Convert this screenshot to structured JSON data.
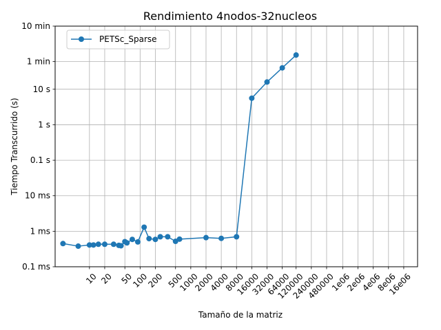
{
  "chart_data": {
    "type": "line",
    "title": "Rendimiento 4nodos-32nucleos",
    "xlabel": "Tamaño de la matriz",
    "ylabel": "Tiempo Transcurrido (s)",
    "xscale": "log",
    "yscale": "log",
    "xlim": [
      2.1,
      30000000
    ],
    "ylim": [
      0.0001,
      600
    ],
    "grid": true,
    "legend_position": "top-left",
    "x_ticks": [
      {
        "value": 10,
        "label": "10"
      },
      {
        "value": 20,
        "label": "20"
      },
      {
        "value": 50,
        "label": "50"
      },
      {
        "value": 100,
        "label": "100"
      },
      {
        "value": 200,
        "label": "200"
      },
      {
        "value": 500,
        "label": "500"
      },
      {
        "value": 1000,
        "label": "1000"
      },
      {
        "value": 2000,
        "label": "2000"
      },
      {
        "value": 4000,
        "label": "4000"
      },
      {
        "value": 8000,
        "label": "8000"
      },
      {
        "value": 16000,
        "label": "16000"
      },
      {
        "value": 32000,
        "label": "32000"
      },
      {
        "value": 64000,
        "label": "64000"
      },
      {
        "value": 120000,
        "label": "120000"
      },
      {
        "value": 240000,
        "label": "240000"
      },
      {
        "value": 480000,
        "label": "480000"
      },
      {
        "value": 1000000,
        "label": "1e06"
      },
      {
        "value": 2000000,
        "label": "2e06"
      },
      {
        "value": 4000000,
        "label": "4e06"
      },
      {
        "value": 8000000,
        "label": "8e06"
      },
      {
        "value": 16000000,
        "label": "16e06"
      }
    ],
    "y_ticks": [
      {
        "value": 0.0001,
        "label": "0.1 ms"
      },
      {
        "value": 0.001,
        "label": "1 ms"
      },
      {
        "value": 0.01,
        "label": "10 ms"
      },
      {
        "value": 0.1,
        "label": "0.1 s"
      },
      {
        "value": 1,
        "label": "1 s"
      },
      {
        "value": 10,
        "label": "10 s"
      },
      {
        "value": 60,
        "label": "1 min"
      },
      {
        "value": 600,
        "label": "10 min"
      }
    ],
    "series": [
      {
        "name": "PETSc_Sparse",
        "color": "#1f77b4",
        "x": [
          3,
          6,
          10,
          12,
          15,
          20,
          30,
          38,
          42,
          50,
          55,
          70,
          90,
          120,
          150,
          200,
          250,
          350,
          500,
          600,
          2000,
          4000,
          8000,
          16000,
          32000,
          64000,
          120000
        ],
        "y": [
          0.00045,
          0.00038,
          0.00041,
          0.00041,
          0.00043,
          0.00043,
          0.00043,
          0.0004,
          0.00039,
          0.00051,
          0.00047,
          0.00059,
          0.0005,
          0.0013,
          0.00062,
          0.00059,
          0.0007,
          0.0007,
          0.00052,
          0.0006,
          0.00066,
          0.00063,
          0.0007,
          5.6,
          16,
          40,
          92
        ]
      }
    ]
  }
}
